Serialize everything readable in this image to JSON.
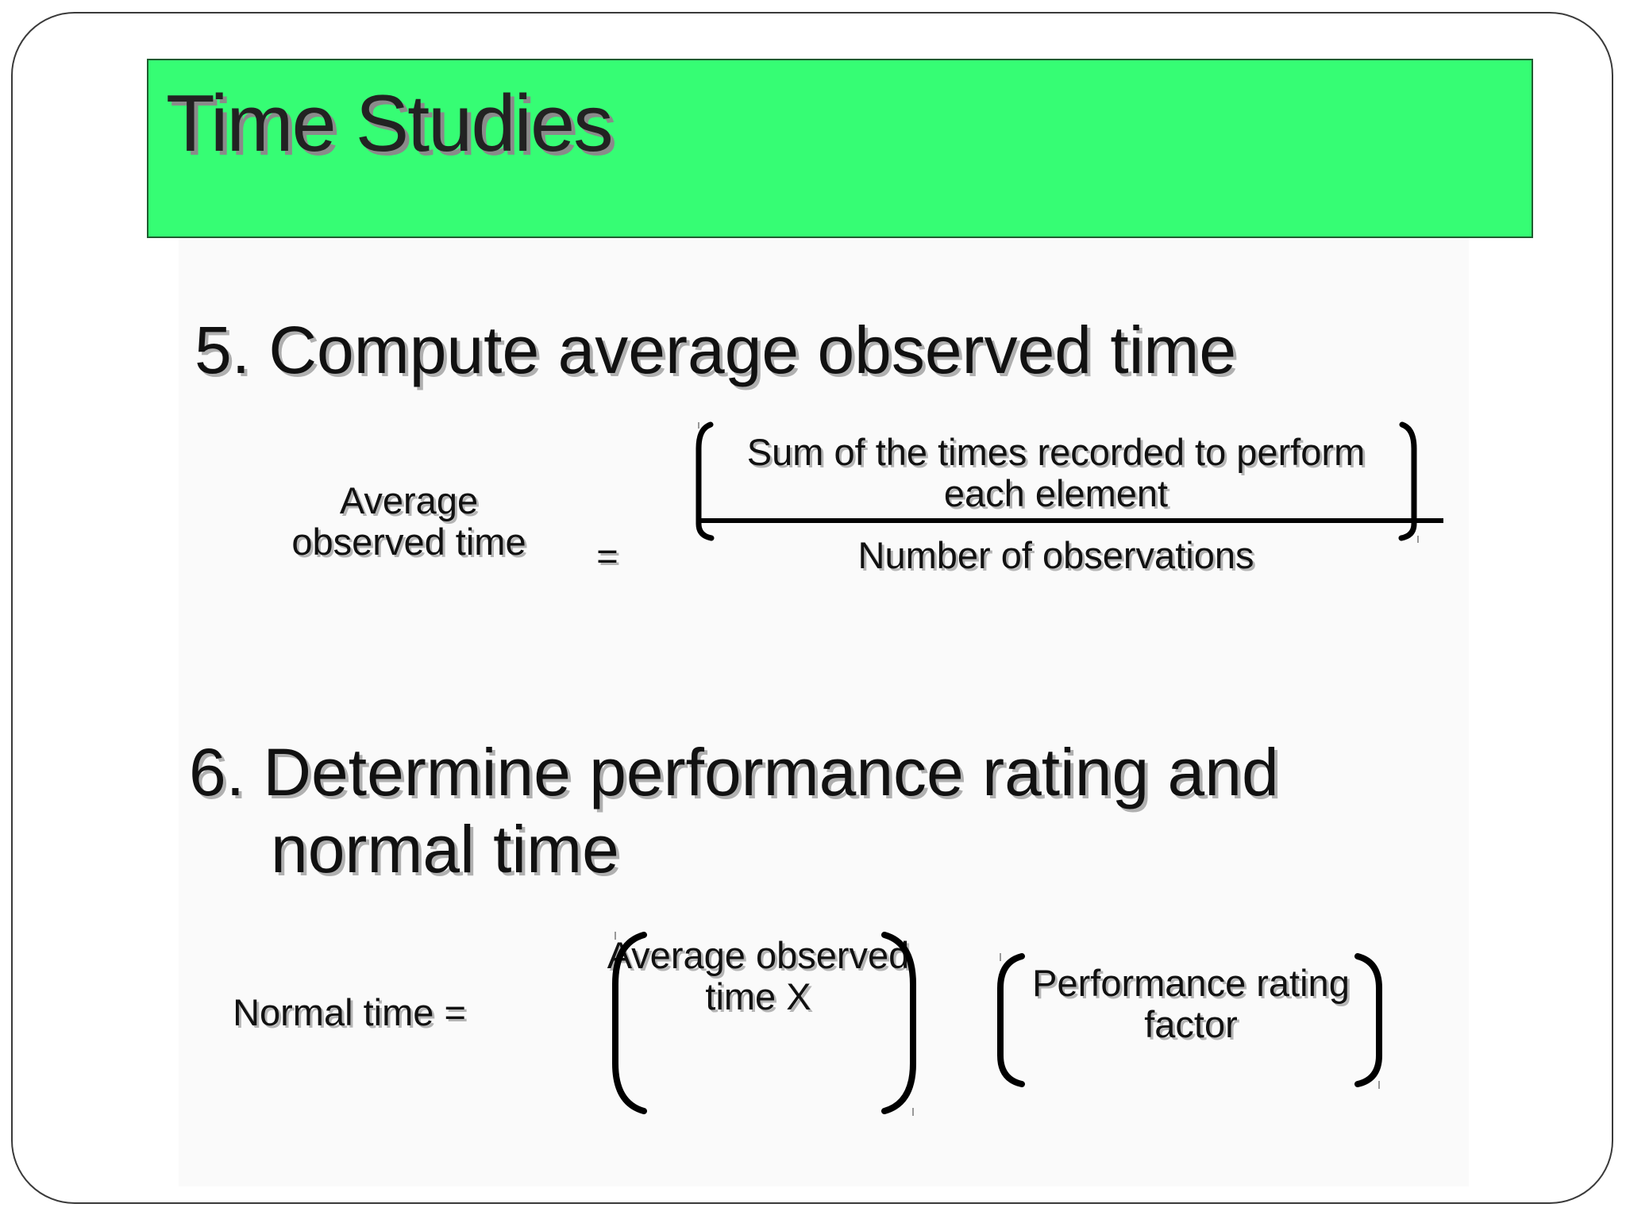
{
  "slide": {
    "title": "Time Studies",
    "step5": {
      "heading": "5. Compute average observed time",
      "lhs_line1": "Average",
      "lhs_line2": "observed time",
      "equals": "=",
      "numerator_line1": "Sum of the times recorded to perform",
      "numerator_line2": "each element",
      "denominator": "Number of observations"
    },
    "step6": {
      "heading_line1": "6. Determine performance rating and",
      "heading_line2": "normal time",
      "lhs": "Normal time =",
      "factor1_line1": "Average observed",
      "factor1_line2": "time X",
      "factor2_line1": "Performance rating",
      "factor2_line2": "factor"
    }
  },
  "colors": {
    "title_background": "#36fd74",
    "frame_border": "#3a3a3a",
    "text": "#111111"
  }
}
